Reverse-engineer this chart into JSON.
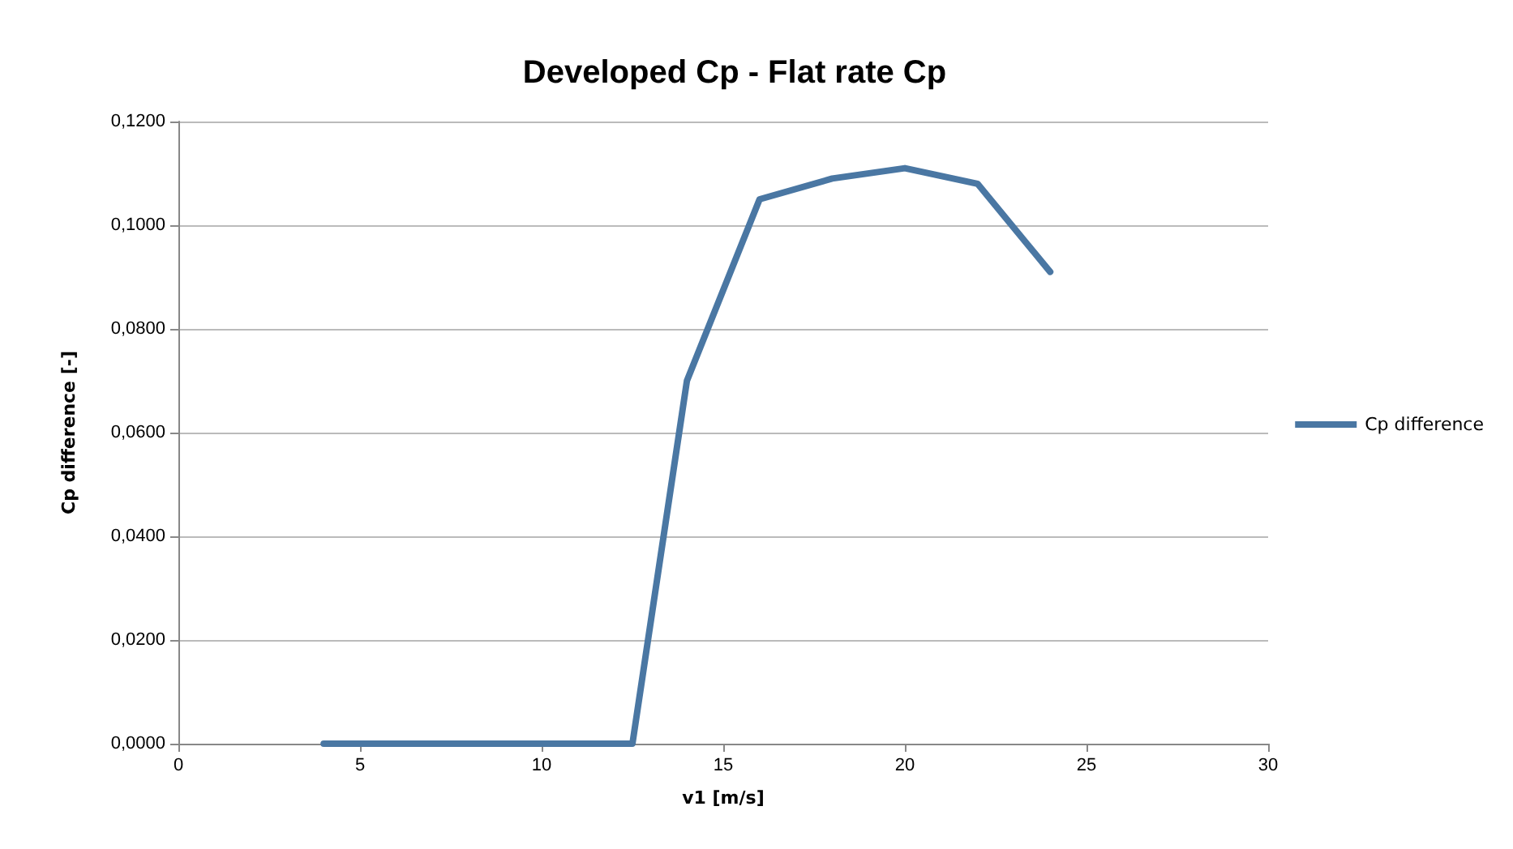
{
  "chart_data": {
    "type": "line",
    "title": "Developed Cp - Flat rate Cp",
    "xlabel": "v1 [m/s]",
    "ylabel": "Cp difference [-]",
    "x": [
      4,
      6,
      8,
      10,
      12,
      12.5,
      14,
      16,
      18,
      20,
      22,
      24
    ],
    "series": [
      {
        "name": "Cp difference",
        "color": "#4a77a3",
        "values": [
          0,
          0,
          0,
          0,
          0,
          0,
          0.07,
          0.105,
          0.109,
          0.111,
          0.108,
          0.091
        ]
      }
    ],
    "xlim": [
      0,
      30
    ],
    "xticks": [
      0,
      5,
      10,
      15,
      20,
      25,
      30
    ],
    "ylim": [
      0,
      0.12
    ],
    "yticks": [
      {
        "value": 0,
        "label": "0,0000"
      },
      {
        "value": 0.02,
        "label": "0,0200"
      },
      {
        "value": 0.04,
        "label": "0,0400"
      },
      {
        "value": 0.06,
        "label": "0,0600"
      },
      {
        "value": 0.08,
        "label": "0,0800"
      },
      {
        "value": 0.1,
        "label": "0,1000"
      },
      {
        "value": 0.12,
        "label": "0,1200"
      }
    ],
    "grid": "y",
    "legend": "right",
    "marker": "none",
    "line_style": "solid"
  }
}
